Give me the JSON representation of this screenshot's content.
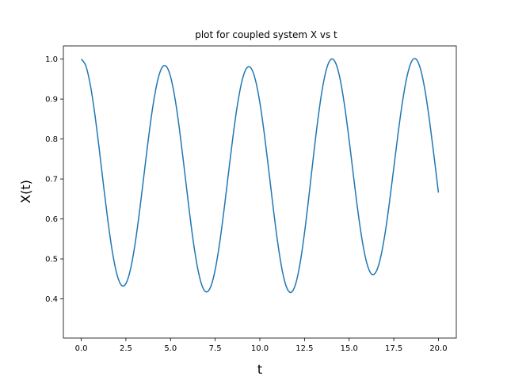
{
  "chart_data": {
    "type": "line",
    "title": "plot for coupled system X vs t",
    "xlabel": "t",
    "ylabel": "X(t)",
    "xlim": [
      -1.0,
      21.0
    ],
    "ylim": [
      0.302,
      1.033
    ],
    "grid": false,
    "x_ticks": [
      0.0,
      2.5,
      5.0,
      7.5,
      10.0,
      12.5,
      15.0,
      17.5,
      20.0
    ],
    "x_tick_labels": [
      "0.0",
      "2.5",
      "5.0",
      "7.5",
      "10.0",
      "12.5",
      "15.0",
      "17.5",
      "20.0"
    ],
    "y_ticks": [
      0.4,
      0.5,
      0.6,
      0.7,
      0.8,
      0.9,
      1.0
    ],
    "y_tick_labels": [
      "0.4",
      "0.5",
      "0.6",
      "0.7",
      "0.8",
      "0.9",
      "1.0"
    ],
    "series": [
      {
        "color": "#1f77b4",
        "x": [
          0.0,
          0.25,
          0.5,
          0.75,
          1.0,
          1.25,
          1.5,
          1.75,
          2.0,
          2.25,
          2.5,
          2.75,
          3.0,
          3.25,
          3.5,
          3.75,
          4.0,
          4.25,
          4.5,
          4.75,
          5.0,
          5.25,
          5.5,
          5.75,
          6.0,
          6.25,
          6.5,
          6.75,
          7.0,
          7.25,
          7.5,
          7.75,
          8.0,
          8.25,
          8.5,
          8.75,
          9.0,
          9.25,
          9.5,
          9.75,
          10.0,
          10.25,
          10.5,
          10.75,
          11.0,
          11.25,
          11.5,
          11.75,
          12.0,
          12.25,
          12.5,
          12.75,
          13.0,
          13.25,
          13.5,
          13.75,
          14.0,
          14.25,
          14.5,
          14.75,
          15.0,
          15.25,
          15.5,
          15.75,
          16.0,
          16.25,
          16.5,
          16.75,
          17.0,
          17.25,
          17.5,
          17.75,
          18.0,
          18.25,
          18.5,
          18.75,
          19.0,
          19.25,
          19.5,
          19.75,
          20.0
        ],
        "y": [
          1.0,
          0.9839,
          0.9374,
          0.8659,
          0.7778,
          0.6832,
          0.5928,
          0.5159,
          0.4611,
          0.4342,
          0.4383,
          0.4727,
          0.5335,
          0.614,
          0.7053,
          0.797,
          0.8788,
          0.9411,
          0.977,
          0.9823,
          0.9562,
          0.9014,
          0.8242,
          0.7333,
          0.6389,
          0.5516,
          0.4811,
          0.4347,
          0.4173,
          0.4306,
          0.473,
          0.54,
          0.6244,
          0.717,
          0.8078,
          0.8869,
          0.9453,
          0.9766,
          0.9776,
          0.9482,
          0.8913,
          0.8131,
          0.7218,
          0.6274,
          0.5409,
          0.472,
          0.4286,
          0.4162,
          0.4367,
          0.4882,
          0.5649,
          0.6578,
          0.7563,
          0.849,
          0.9257,
          0.9779,
          1.0,
          0.9897,
          0.9487,
          0.8819,
          0.7973,
          0.7051,
          0.6162,
          0.541,
          0.4879,
          0.4624,
          0.4671,
          0.5012,
          0.5607,
          0.6391,
          0.7279,
          0.8172,
          0.897,
          0.9584,
          0.9944,
          1.0,
          0.9744,
          0.9212,
          0.8462,
          0.758,
          0.666
        ]
      }
    ]
  }
}
